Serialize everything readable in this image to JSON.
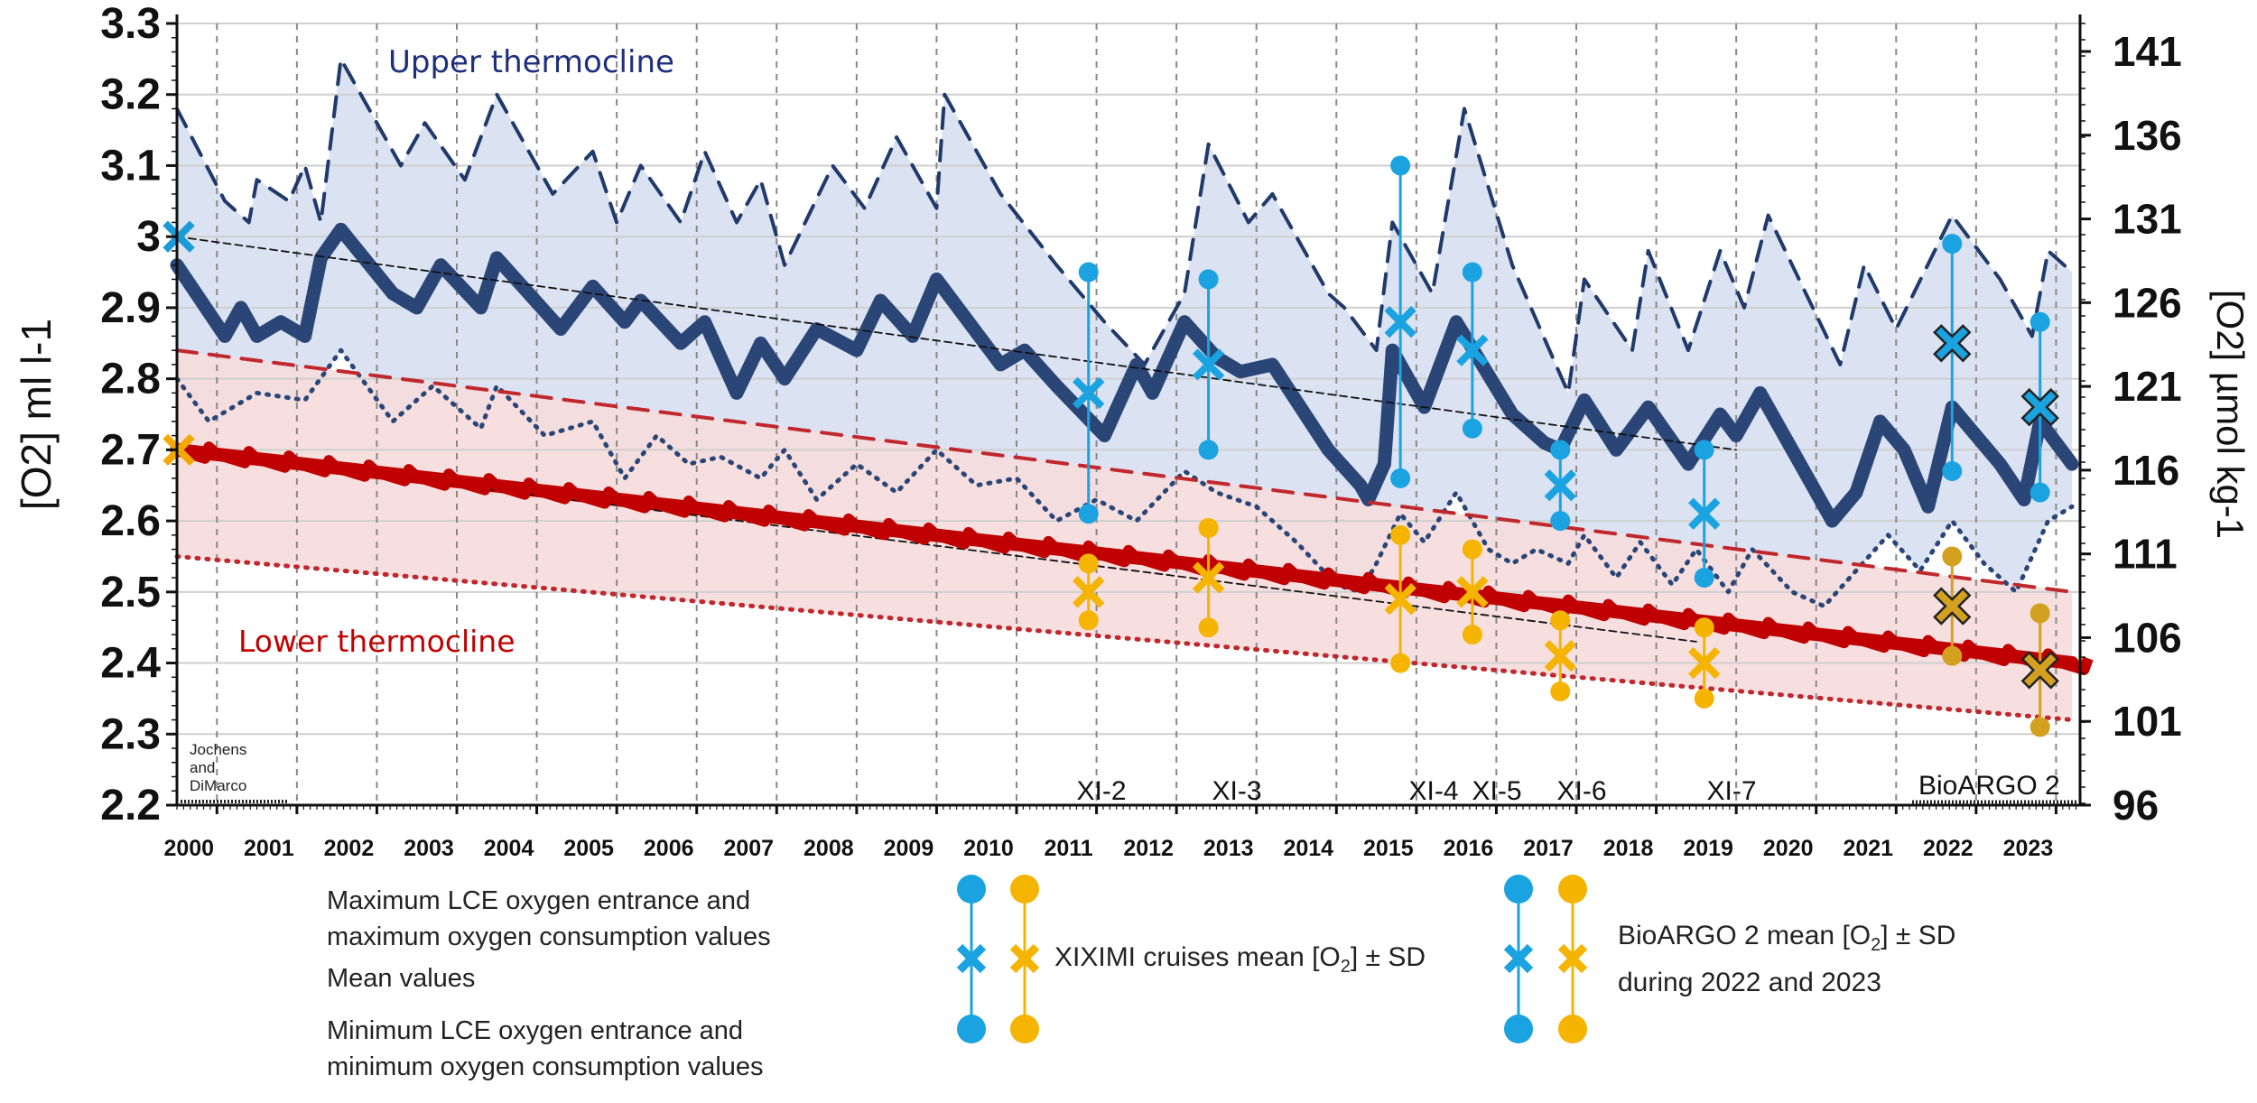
{
  "chart_data": {
    "type": "line",
    "left_axis": {
      "label": "[O2]  ml l-1",
      "ylim": [
        2.2,
        3.3
      ],
      "ticks": [
        "2.2",
        "2.3",
        "2.4",
        "2.5",
        "2.6",
        "2.7",
        "2.8",
        "2.9",
        "3",
        "3.1",
        "3.2",
        "3.3"
      ]
    },
    "right_axis": {
      "label": "[O2]  µmol kg-1",
      "ticks": [
        "96",
        "101",
        "106",
        "111",
        "116",
        "121",
        "126",
        "131",
        "136",
        "141"
      ]
    },
    "x_axis": {
      "xlim": [
        2000,
        2023.8
      ],
      "ticks": [
        "2000",
        "2001",
        "2002",
        "2003",
        "2004",
        "2005",
        "2006",
        "2007",
        "2008",
        "2009",
        "2010",
        "2011",
        "2012",
        "2013",
        "2014",
        "2015",
        "2016",
        "2017",
        "2018",
        "2019",
        "2020",
        "2021",
        "2022",
        "2023"
      ]
    },
    "region_labels": {
      "upper": "Upper thermocline",
      "lower": "Lower thermocline"
    },
    "annotations": {
      "jochens": [
        "Jochens",
        "and",
        "DiMarco"
      ],
      "bioargo": "BioARGO 2",
      "cruises": [
        "XI-2",
        "XI-3",
        "XI-4",
        "XI-5",
        "XI-6",
        "XI-7"
      ]
    },
    "series": [
      {
        "name": "Upper thermocline maximum",
        "style": "dashed",
        "color": "#1f3a6b",
        "points": [
          [
            2000,
            3.18
          ],
          [
            2000.6,
            3.05
          ],
          [
            2000.9,
            3.02
          ],
          [
            2001.0,
            3.08
          ],
          [
            2001.4,
            3.05
          ],
          [
            2001.6,
            3.1
          ],
          [
            2001.8,
            3.02
          ],
          [
            2002.05,
            3.25
          ],
          [
            2002.8,
            3.1
          ],
          [
            2003.1,
            3.16
          ],
          [
            2003.6,
            3.08
          ],
          [
            2004.0,
            3.2
          ],
          [
            2004.7,
            3.06
          ],
          [
            2005.2,
            3.12
          ],
          [
            2005.5,
            3.02
          ],
          [
            2005.8,
            3.1
          ],
          [
            2006.3,
            3.02
          ],
          [
            2006.6,
            3.12
          ],
          [
            2007.0,
            3.02
          ],
          [
            2007.3,
            3.08
          ],
          [
            2007.6,
            2.96
          ],
          [
            2008.2,
            3.1
          ],
          [
            2008.6,
            3.04
          ],
          [
            2009.0,
            3.14
          ],
          [
            2009.5,
            3.04
          ],
          [
            2009.6,
            3.2
          ],
          [
            2010.3,
            3.06
          ],
          [
            2011.0,
            2.96
          ],
          [
            2011.6,
            2.88
          ],
          [
            2012.1,
            2.82
          ],
          [
            2012.6,
            2.92
          ],
          [
            2012.9,
            3.13
          ],
          [
            2013.4,
            3.02
          ],
          [
            2013.7,
            3.06
          ],
          [
            2014.4,
            2.92
          ],
          [
            2014.6,
            2.9
          ],
          [
            2015.0,
            2.84
          ],
          [
            2015.2,
            3.02
          ],
          [
            2015.7,
            2.92
          ],
          [
            2016.1,
            3.18
          ],
          [
            2016.7,
            2.96
          ],
          [
            2017.4,
            2.78
          ],
          [
            2017.6,
            2.94
          ],
          [
            2018.2,
            2.84
          ],
          [
            2018.4,
            2.98
          ],
          [
            2018.9,
            2.84
          ],
          [
            2019.3,
            2.98
          ],
          [
            2019.6,
            2.9
          ],
          [
            2019.9,
            3.03
          ],
          [
            2020.8,
            2.82
          ],
          [
            2021.1,
            2.96
          ],
          [
            2021.5,
            2.87
          ],
          [
            2022.2,
            3.03
          ],
          [
            2022.8,
            2.94
          ],
          [
            2023.2,
            2.86
          ],
          [
            2023.4,
            2.98
          ],
          [
            2023.7,
            2.95
          ]
        ]
      },
      {
        "name": "Upper thermocline mean",
        "style": "solid",
        "color": "#2a4677",
        "points": [
          [
            2000,
            2.96
          ],
          [
            2000.6,
            2.86
          ],
          [
            2000.8,
            2.9
          ],
          [
            2001.0,
            2.86
          ],
          [
            2001.3,
            2.88
          ],
          [
            2001.6,
            2.86
          ],
          [
            2001.8,
            2.97
          ],
          [
            2002.05,
            3.01
          ],
          [
            2002.7,
            2.92
          ],
          [
            2003.0,
            2.9
          ],
          [
            2003.3,
            2.96
          ],
          [
            2003.8,
            2.9
          ],
          [
            2004.0,
            2.97
          ],
          [
            2004.8,
            2.87
          ],
          [
            2005.2,
            2.93
          ],
          [
            2005.6,
            2.88
          ],
          [
            2005.8,
            2.91
          ],
          [
            2006.3,
            2.85
          ],
          [
            2006.6,
            2.88
          ],
          [
            2007.0,
            2.78
          ],
          [
            2007.3,
            2.85
          ],
          [
            2007.6,
            2.8
          ],
          [
            2008.0,
            2.87
          ],
          [
            2008.5,
            2.84
          ],
          [
            2008.8,
            2.91
          ],
          [
            2009.2,
            2.86
          ],
          [
            2009.5,
            2.94
          ],
          [
            2010.3,
            2.82
          ],
          [
            2010.6,
            2.84
          ],
          [
            2011.0,
            2.79
          ],
          [
            2011.6,
            2.72
          ],
          [
            2012.0,
            2.82
          ],
          [
            2012.2,
            2.78
          ],
          [
            2012.6,
            2.88
          ],
          [
            2013.0,
            2.83
          ],
          [
            2013.3,
            2.81
          ],
          [
            2013.7,
            2.82
          ],
          [
            2014.4,
            2.7
          ],
          [
            2014.8,
            2.65
          ],
          [
            2014.9,
            2.63
          ],
          [
            2015.1,
            2.68
          ],
          [
            2015.2,
            2.84
          ],
          [
            2015.6,
            2.76
          ],
          [
            2016.0,
            2.88
          ],
          [
            2016.7,
            2.75
          ],
          [
            2017.1,
            2.71
          ],
          [
            2017.3,
            2.7
          ],
          [
            2017.6,
            2.77
          ],
          [
            2018.0,
            2.7
          ],
          [
            2018.4,
            2.76
          ],
          [
            2018.9,
            2.68
          ],
          [
            2019.3,
            2.75
          ],
          [
            2019.5,
            2.72
          ],
          [
            2019.8,
            2.78
          ],
          [
            2020.7,
            2.6
          ],
          [
            2021.0,
            2.64
          ],
          [
            2021.3,
            2.74
          ],
          [
            2021.6,
            2.7
          ],
          [
            2021.9,
            2.62
          ],
          [
            2022.2,
            2.76
          ],
          [
            2022.8,
            2.68
          ],
          [
            2023.1,
            2.63
          ],
          [
            2023.3,
            2.74
          ],
          [
            2023.7,
            2.68
          ]
        ]
      },
      {
        "name": "Upper thermocline minimum",
        "style": "dotted",
        "color": "#2a4677",
        "points": [
          [
            2000,
            2.8
          ],
          [
            2000.4,
            2.74
          ],
          [
            2001.0,
            2.78
          ],
          [
            2001.6,
            2.77
          ],
          [
            2002.05,
            2.84
          ],
          [
            2002.7,
            2.74
          ],
          [
            2003.2,
            2.79
          ],
          [
            2003.8,
            2.73
          ],
          [
            2004.0,
            2.79
          ],
          [
            2004.6,
            2.72
          ],
          [
            2005.2,
            2.74
          ],
          [
            2005.6,
            2.66
          ],
          [
            2006.0,
            2.72
          ],
          [
            2006.4,
            2.68
          ],
          [
            2006.8,
            2.69
          ],
          [
            2007.3,
            2.66
          ],
          [
            2007.6,
            2.7
          ],
          [
            2008.0,
            2.63
          ],
          [
            2008.5,
            2.68
          ],
          [
            2009.0,
            2.64
          ],
          [
            2009.5,
            2.7
          ],
          [
            2010.0,
            2.65
          ],
          [
            2010.5,
            2.66
          ],
          [
            2011.0,
            2.6
          ],
          [
            2011.5,
            2.63
          ],
          [
            2012.0,
            2.6
          ],
          [
            2012.6,
            2.67
          ],
          [
            2013.0,
            2.64
          ],
          [
            2013.5,
            2.62
          ],
          [
            2014.0,
            2.57
          ],
          [
            2014.5,
            2.51
          ],
          [
            2014.8,
            2.5
          ],
          [
            2015.0,
            2.54
          ],
          [
            2015.3,
            2.61
          ],
          [
            2015.6,
            2.57
          ],
          [
            2016.0,
            2.64
          ],
          [
            2016.4,
            2.56
          ],
          [
            2016.7,
            2.54
          ],
          [
            2017.0,
            2.56
          ],
          [
            2017.4,
            2.54
          ],
          [
            2017.6,
            2.58
          ],
          [
            2018.0,
            2.52
          ],
          [
            2018.3,
            2.57
          ],
          [
            2018.7,
            2.51
          ],
          [
            2019.0,
            2.56
          ],
          [
            2019.4,
            2.5
          ],
          [
            2019.7,
            2.56
          ],
          [
            2020.2,
            2.5
          ],
          [
            2020.6,
            2.48
          ],
          [
            2021.0,
            2.53
          ],
          [
            2021.4,
            2.58
          ],
          [
            2021.8,
            2.53
          ],
          [
            2022.2,
            2.6
          ],
          [
            2022.6,
            2.54
          ],
          [
            2023.0,
            2.5
          ],
          [
            2023.4,
            2.6
          ],
          [
            2023.7,
            2.62
          ]
        ]
      },
      {
        "name": "Lower thermocline maximum",
        "style": "dashed",
        "color": "#c0282d",
        "points": [
          [
            2000,
            2.84
          ],
          [
            2023.7,
            2.5
          ]
        ]
      },
      {
        "name": "Lower thermocline mean",
        "style": "solid",
        "color": "#c00000",
        "points": [
          [
            2000,
            2.7
          ],
          [
            2023.7,
            2.4
          ]
        ]
      },
      {
        "name": "Lower thermocline minimum",
        "style": "dotted",
        "color": "#c0282d",
        "points": [
          [
            2000,
            2.55
          ],
          [
            2023.7,
            2.32
          ]
        ]
      },
      {
        "name": "Upper trend",
        "style": "thin-dashed",
        "color": "#111111",
        "points": [
          [
            2000,
            3.0
          ],
          [
            2019.5,
            2.7
          ]
        ]
      },
      {
        "name": "Lower trend",
        "style": "thin-dashed",
        "color": "#111111",
        "points": [
          [
            2000,
            2.7
          ],
          [
            2019.0,
            2.43
          ]
        ]
      }
    ],
    "xiximi_upper": [
      {
        "label": "XI-2",
        "x": 2011.4,
        "mean": 2.78,
        "lo": 2.61,
        "hi": 2.95
      },
      {
        "label": "XI-3",
        "x": 2012.9,
        "mean": 2.82,
        "lo": 2.7,
        "hi": 2.94
      },
      {
        "label": "XI-4",
        "x": 2015.3,
        "mean": 2.88,
        "lo": 2.66,
        "hi": 3.1
      },
      {
        "label": "XI-5",
        "x": 2016.2,
        "mean": 2.84,
        "lo": 2.73,
        "hi": 2.95
      },
      {
        "label": "XI-6",
        "x": 2017.3,
        "mean": 2.65,
        "lo": 2.6,
        "hi": 2.7
      },
      {
        "label": "XI-7",
        "x": 2019.1,
        "mean": 2.61,
        "lo": 2.52,
        "hi": 2.7
      }
    ],
    "xiximi_lower": [
      {
        "label": "XI-2",
        "x": 2011.4,
        "mean": 2.5,
        "lo": 2.46,
        "hi": 2.54
      },
      {
        "label": "XI-3",
        "x": 2012.9,
        "mean": 2.52,
        "lo": 2.45,
        "hi": 2.59
      },
      {
        "label": "XI-4",
        "x": 2015.3,
        "mean": 2.49,
        "lo": 2.4,
        "hi": 2.58
      },
      {
        "label": "XI-5",
        "x": 2016.2,
        "mean": 2.5,
        "lo": 2.44,
        "hi": 2.56
      },
      {
        "label": "XI-6",
        "x": 2017.3,
        "mean": 2.41,
        "lo": 2.36,
        "hi": 2.46
      },
      {
        "label": "XI-7",
        "x": 2019.1,
        "mean": 2.4,
        "lo": 2.35,
        "hi": 2.45
      }
    ],
    "bioargo_upper": [
      {
        "x": 2022.2,
        "mean": 2.85,
        "lo": 2.67,
        "hi": 2.99
      },
      {
        "x": 2023.3,
        "mean": 2.76,
        "lo": 2.64,
        "hi": 2.88
      }
    ],
    "bioargo_lower": [
      {
        "x": 2022.2,
        "mean": 2.48,
        "lo": 2.41,
        "hi": 2.55
      },
      {
        "x": 2023.3,
        "mean": 2.39,
        "lo": 2.31,
        "hi": 2.47
      }
    ],
    "start_markers": [
      {
        "x": 2000,
        "y": 3.0,
        "color": "#1a9ad6"
      },
      {
        "x": 2000,
        "y": 2.7,
        "color": "#f5a800"
      }
    ],
    "colors": {
      "upper_fill": "#dbe3f2",
      "lower_fill": "#f6dcdc",
      "cruise_blue": "#1aa3e0",
      "cruise_orange": "#f5b400",
      "bioargo_orange": "#d4a020",
      "grid": "#888888"
    }
  },
  "legend": {
    "max_text_1": "Maximum LCE oxygen entrance and",
    "max_text_2": "maximum oxygen consumption values",
    "mean_text": "Mean values",
    "min_text_1": "Minimum LCE oxygen entrance and",
    "min_text_2": "minimum oxygen consumption values",
    "xiximi_prefix": "XIXIMI cruises mean [O",
    "xiximi_sub": "2",
    "xiximi_suffix": "] ± SD",
    "bioargo_prefix": "BioARGO 2 mean [O",
    "bioargo_sub": "2",
    "bioargo_suffix": "] ± SD",
    "bioargo_line2": "during 2022 and 2023"
  }
}
